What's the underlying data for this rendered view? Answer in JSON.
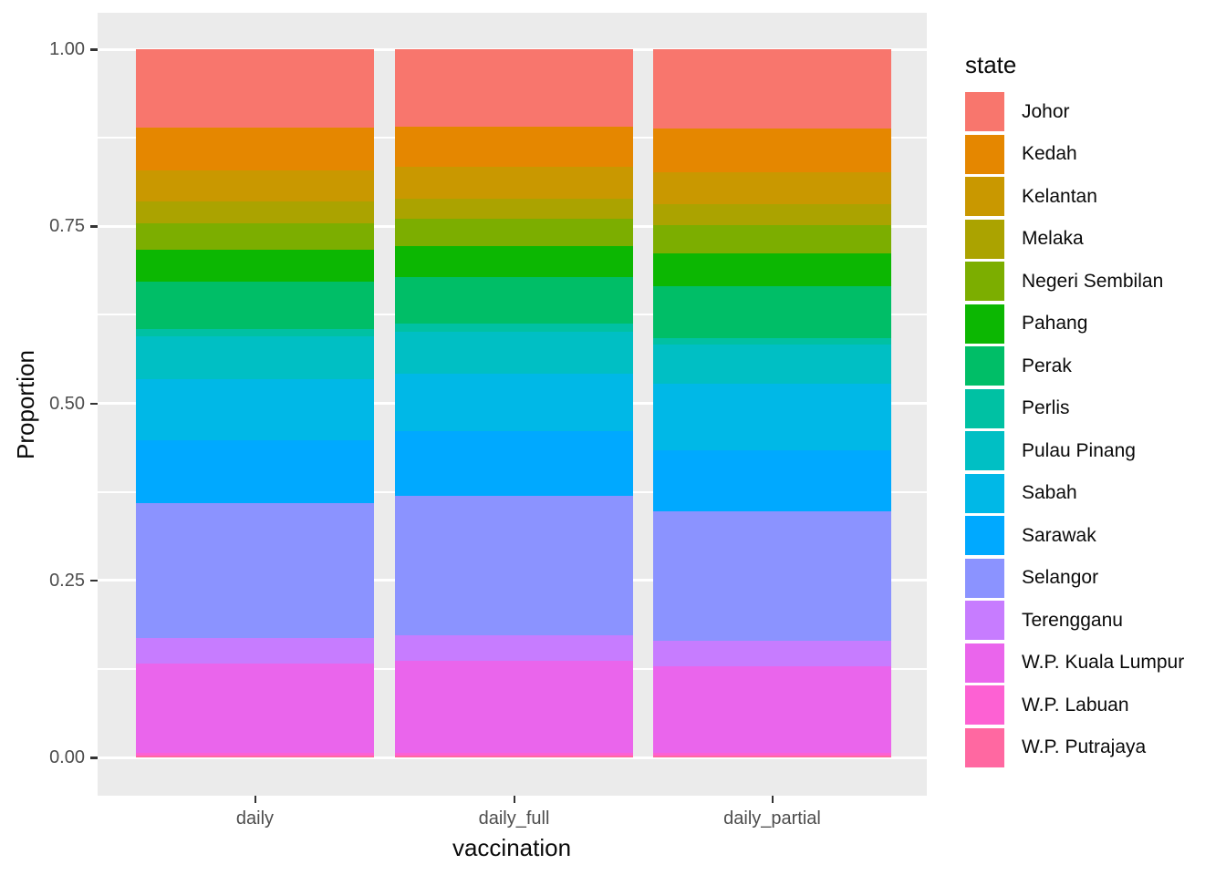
{
  "chart_data": {
    "type": "bar",
    "stacked": true,
    "normalized": true,
    "xlabel": "vaccination",
    "ylabel": "Proportion",
    "categories": [
      "daily",
      "daily_full",
      "daily_partial"
    ],
    "y_tick_labels": [
      "0.00",
      "0.25",
      "0.50",
      "0.75",
      "1.00"
    ],
    "y_tick_values": [
      0,
      0.25,
      0.5,
      0.75,
      1.0
    ],
    "y_minor_values": [
      0.125,
      0.375,
      0.625,
      0.875
    ],
    "ylim": [
      0,
      1
    ],
    "grid": true,
    "legend_title": "state",
    "legend_position": "right",
    "panel_bg": "#EBEBEB",
    "grid_color": "#FFFFFF",
    "tick_color": "#333333",
    "axis_text_color": "#4D4D4D",
    "title_text_color": "#0a0a0a",
    "series": [
      {
        "name": "Johor",
        "color": "#F8766D",
        "values": [
          0.111,
          0.109,
          0.112
        ]
      },
      {
        "name": "Kedah",
        "color": "#E58700",
        "values": [
          0.06,
          0.057,
          0.062
        ]
      },
      {
        "name": "Kelantan",
        "color": "#C99800",
        "values": [
          0.044,
          0.045,
          0.045
        ]
      },
      {
        "name": "Melaka",
        "color": "#ABA300",
        "values": [
          0.031,
          0.029,
          0.03
        ]
      },
      {
        "name": "Negeri Sembilan",
        "color": "#7CAE00",
        "values": [
          0.037,
          0.038,
          0.039
        ]
      },
      {
        "name": "Pahang",
        "color": "#0CB702",
        "values": [
          0.045,
          0.044,
          0.047
        ]
      },
      {
        "name": "Perak",
        "color": "#00BE67",
        "values": [
          0.067,
          0.066,
          0.073
        ]
      },
      {
        "name": "Perlis",
        "color": "#00C1A3",
        "values": [
          0.011,
          0.011,
          0.009
        ]
      },
      {
        "name": "Pulau Pinang",
        "color": "#00BFC4",
        "values": [
          0.06,
          0.059,
          0.055
        ]
      },
      {
        "name": "Sabah",
        "color": "#00B8E7",
        "values": [
          0.086,
          0.081,
          0.094
        ]
      },
      {
        "name": "Sarawak",
        "color": "#00A9FF",
        "values": [
          0.089,
          0.092,
          0.086
        ]
      },
      {
        "name": "Selangor",
        "color": "#8B93FF",
        "values": [
          0.191,
          0.196,
          0.183
        ]
      },
      {
        "name": "Terengganu",
        "color": "#C77CFF",
        "values": [
          0.036,
          0.037,
          0.036
        ]
      },
      {
        "name": "W.P. Kuala Lumpur",
        "color": "#EA65EC",
        "values": [
          0.126,
          0.13,
          0.123
        ]
      },
      {
        "name": "W.P. Labuan",
        "color": "#FD61D3",
        "values": [
          0.004,
          0.004,
          0.004
        ]
      },
      {
        "name": "W.P. Putrajaya",
        "color": "#FF68A1",
        "values": [
          0.002,
          0.002,
          0.002
        ]
      }
    ]
  }
}
